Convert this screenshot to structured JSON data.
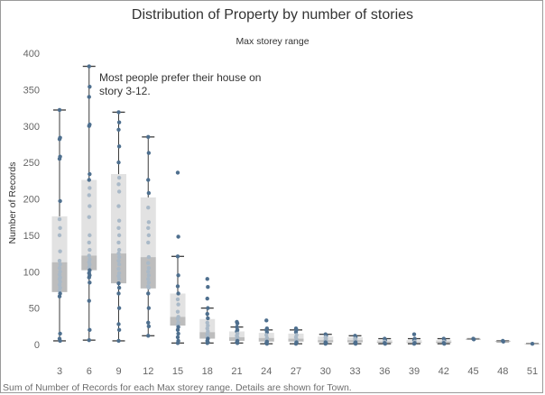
{
  "title": "Distribution of Property by number of stories",
  "column_header": "Max storey range",
  "footer": "Sum of Number of Records for each Max storey range.  Details are shown for Town.",
  "annotation": [
    "Most people prefer their house on",
    "story 3-12."
  ],
  "colors": {
    "dot": "#4e6f8e",
    "dot_light": "#a9b9c8",
    "box_upper": "#e2e2e2",
    "box_lower": "#bdbdbd",
    "whisker": "#3b3b3b"
  },
  "chart_data": {
    "type": "box",
    "xlabel": "",
    "ylabel": "Number of Records",
    "ylim": [
      0,
      400
    ],
    "yticks": [
      0,
      50,
      100,
      150,
      200,
      250,
      300,
      350,
      400
    ],
    "grid": false,
    "categories": [
      "3",
      "6",
      "9",
      "12",
      "15",
      "18",
      "21",
      "24",
      "27",
      "30",
      "33",
      "36",
      "39",
      "42",
      "45",
      "48",
      "51"
    ],
    "boxes": [
      {
        "min": 5,
        "q1": 72,
        "median": 113,
        "q3": 176,
        "max": 322
      },
      {
        "min": 6,
        "q1": 102,
        "median": 122,
        "q3": 226,
        "max": 382
      },
      {
        "min": 5,
        "q1": 84,
        "median": 125,
        "q3": 234,
        "max": 319
      },
      {
        "min": 12,
        "q1": 77,
        "median": 120,
        "q3": 202,
        "max": 285
      },
      {
        "min": 2,
        "q1": 26,
        "median": 38,
        "q3": 70,
        "max": 121
      },
      {
        "min": 2,
        "q1": 8,
        "median": 17,
        "q3": 35,
        "max": 50
      },
      {
        "min": 2,
        "q1": 5,
        "median": 10,
        "q3": 18,
        "max": 24
      },
      {
        "min": 1,
        "q1": 4,
        "median": 9,
        "q3": 16,
        "max": 20
      },
      {
        "min": 1,
        "q1": 4,
        "median": 8,
        "q3": 15,
        "max": 20
      },
      {
        "min": 1,
        "q1": 3,
        "median": 6,
        "q3": 11,
        "max": 14
      },
      {
        "min": 1,
        "q1": 3,
        "median": 6,
        "q3": 10,
        "max": 12
      },
      {
        "min": 1,
        "q1": 2,
        "median": 4,
        "q3": 6,
        "max": 8
      },
      {
        "min": 1,
        "q1": 2,
        "median": 3,
        "q3": 6,
        "max": 8
      },
      {
        "min": 1,
        "q1": 2,
        "median": 4,
        "q3": 6,
        "max": 8
      },
      {
        "min": 7,
        "q1": 7,
        "median": 7,
        "q3": 8,
        "max": 8
      },
      {
        "min": 4,
        "q1": 4,
        "median": 5,
        "q3": 5,
        "max": 5
      },
      {
        "min": 1,
        "q1": 1,
        "median": 1,
        "q3": 1,
        "max": 1
      }
    ],
    "points": [
      [
        322,
        284,
        282,
        258,
        255,
        197,
        172,
        160,
        150,
        128,
        115,
        110,
        105,
        100,
        96,
        92,
        90,
        86,
        82,
        78,
        74,
        70,
        66,
        15,
        8,
        5
      ],
      [
        382,
        354,
        340,
        302,
        300,
        234,
        226,
        215,
        205,
        190,
        175,
        150,
        140,
        130,
        122,
        117,
        113,
        110,
        106,
        102,
        98,
        95,
        92,
        85,
        60,
        20,
        6
      ],
      [
        319,
        305,
        295,
        272,
        250,
        229,
        220,
        210,
        190,
        170,
        160,
        150,
        140,
        130,
        125,
        120,
        115,
        110,
        104,
        98,
        94,
        90,
        84,
        78,
        70,
        50,
        28,
        20,
        5
      ],
      [
        285,
        263,
        226,
        208,
        188,
        168,
        160,
        150,
        140,
        120,
        112,
        105,
        100,
        95,
        90,
        85,
        80,
        78,
        70,
        50,
        30,
        25,
        12
      ],
      [
        236,
        148,
        121,
        95,
        80,
        70,
        62,
        55,
        45,
        38,
        35,
        30,
        27,
        24,
        20,
        15,
        10,
        5,
        2
      ],
      [
        90,
        79,
        63,
        50,
        42,
        36,
        30,
        26,
        22,
        18,
        14,
        12,
        10,
        8,
        5,
        3,
        2
      ],
      [
        31,
        29,
        24,
        20,
        18,
        15,
        12,
        10,
        8,
        5,
        3,
        2
      ],
      [
        33,
        22,
        20,
        17,
        13,
        9,
        6,
        4,
        2,
        1
      ],
      [
        22,
        20,
        17,
        13,
        10,
        7,
        5,
        3,
        1
      ],
      [
        14,
        12,
        10,
        8,
        6,
        5,
        3,
        2,
        1
      ],
      [
        12,
        10,
        8,
        6,
        5,
        3,
        2,
        1
      ],
      [
        8,
        6,
        4,
        3,
        2,
        1
      ],
      [
        14,
        8,
        6,
        4,
        3,
        2,
        1
      ],
      [
        8,
        6,
        4,
        3,
        2,
        1
      ],
      [
        8,
        7
      ],
      [
        5,
        4
      ],
      [
        1
      ]
    ]
  }
}
